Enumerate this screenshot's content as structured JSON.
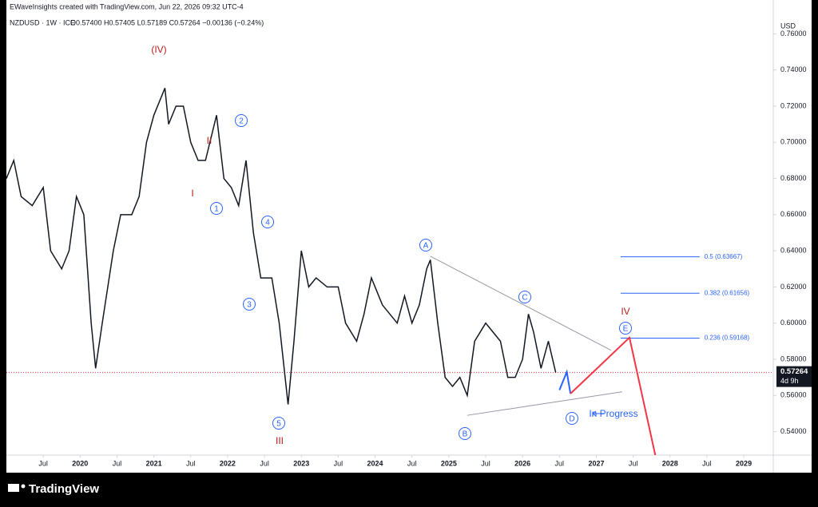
{
  "chart_data": {
    "type": "line",
    "header": "EWaveInsights created with TradingView.com, Jun 22, 2026 09:32 UTC-4",
    "symbol": "NZDUSD · 1W · ICE",
    "ohlc": "O0.57400 H0.57405 L0.57189 C0.57264 −0.00136 (−0.24%)",
    "y_unit": "USD",
    "brand": "TradingView",
    "xlim": [
      2019.0,
      2029.4
    ],
    "ylim": [
      0.527,
      0.769
    ],
    "xticks": [
      {
        "value": 2019.5,
        "label": "Jul"
      },
      2020,
      {
        "value": 2020.5,
        "label": "Jul"
      },
      2021,
      {
        "value": 2021.5,
        "label": "Jul"
      },
      2022,
      {
        "value": 2022.5,
        "label": "Jul"
      },
      2023,
      {
        "value": 2023.5,
        "label": "Jul"
      },
      2024,
      {
        "value": 2024.5,
        "label": "Jul"
      },
      2025,
      {
        "value": 2025.5,
        "label": "Jul"
      },
      2026,
      {
        "value": 2026.5,
        "label": "Jul"
      },
      2027,
      {
        "value": 2027.5,
        "label": "Jul"
      },
      2028,
      {
        "value": 2028.5,
        "label": "Jul"
      },
      2029
    ],
    "yticks": [
      {
        "value": 0.54,
        "label": "0.54000"
      },
      {
        "value": 0.56,
        "label": "0.56000"
      },
      {
        "value": 0.58,
        "label": "0.58000"
      },
      {
        "value": 0.6,
        "label": "0.60000"
      },
      {
        "value": 0.62,
        "label": "0.62000"
      },
      {
        "value": 0.64,
        "label": "0.64000"
      },
      {
        "value": 0.66,
        "label": "0.66000"
      },
      {
        "value": 0.68,
        "label": "0.68000"
      },
      {
        "value": 0.7,
        "label": "0.70000"
      },
      {
        "value": 0.72,
        "label": "0.72000"
      },
      {
        "value": 0.74,
        "label": "0.74000"
      },
      {
        "value": 0.76,
        "label": "0.76000"
      }
    ],
    "series": [
      {
        "color": "#131722",
        "x": [
          2019.0,
          2019.1,
          2019.2,
          2019.35,
          2019.5,
          2019.6,
          2019.75,
          2019.85,
          2019.95,
          2020.05,
          2020.15,
          2020.21,
          2020.3,
          2020.45,
          2020.55,
          2020.7,
          2020.8,
          2020.9,
          2021.0,
          2021.15,
          2021.2,
          2021.3,
          2021.4,
          2021.5,
          2021.6,
          2021.7,
          2021.85,
          2021.95,
          2022.05,
          2022.15,
          2022.25,
          2022.35,
          2022.45,
          2022.6,
          2022.7,
          2022.78,
          2022.82,
          2022.9,
          2023.0,
          2023.1,
          2023.2,
          2023.35,
          2023.5,
          2023.6,
          2023.75,
          2023.85,
          2023.95,
          2024.1,
          2024.3,
          2024.4,
          2024.5,
          2024.6,
          2024.7,
          2024.75,
          2024.85,
          2024.95,
          2025.05,
          2025.15,
          2025.25,
          2025.35,
          2025.5,
          2025.6,
          2025.7,
          2025.8,
          2025.9,
          2026.0,
          2026.08,
          2026.15,
          2026.25,
          2026.35,
          2026.45
        ],
        "values": [
          0.68,
          0.69,
          0.67,
          0.665,
          0.675,
          0.64,
          0.63,
          0.64,
          0.67,
          0.66,
          0.6,
          0.575,
          0.6,
          0.64,
          0.66,
          0.66,
          0.67,
          0.7,
          0.715,
          0.73,
          0.71,
          0.72,
          0.72,
          0.7,
          0.69,
          0.69,
          0.715,
          0.68,
          0.675,
          0.665,
          0.69,
          0.65,
          0.625,
          0.625,
          0.6,
          0.57,
          0.555,
          0.59,
          0.64,
          0.62,
          0.625,
          0.62,
          0.62,
          0.6,
          0.59,
          0.605,
          0.625,
          0.61,
          0.6,
          0.615,
          0.6,
          0.61,
          0.63,
          0.635,
          0.6,
          0.57,
          0.565,
          0.57,
          0.56,
          0.59,
          0.6,
          0.595,
          0.59,
          0.57,
          0.57,
          0.58,
          0.605,
          0.595,
          0.575,
          0.59,
          0.57264
        ]
      }
    ],
    "last_price": {
      "value": 0.57264,
      "label": "0.57264"
    },
    "countdown": "4d 9h",
    "levels": [
      {
        "value": 0.63667,
        "label": "0.5 (0.63667)"
      },
      {
        "value": 0.61656,
        "label": "0.382 (0.61656)"
      },
      {
        "value": 0.59168,
        "label": "0.236 (0.59168)"
      }
    ],
    "drawings": [
      {
        "color": "#9598a1",
        "x": [
          2024.75,
          2027.2
        ],
        "y": [
          0.637,
          0.585
        ]
      },
      {
        "color": "#9598a1",
        "x": [
          2025.25,
          2027.35
        ],
        "y": [
          0.549,
          0.562
        ]
      },
      {
        "color": "#2962ff",
        "x": [
          2026.5,
          2026.6,
          2026.65
        ],
        "y": [
          0.563,
          0.573,
          0.561
        ]
      },
      {
        "color": "#f23645",
        "x": [
          2026.65,
          2027.45,
          2027.8
        ],
        "y": [
          0.561,
          0.592,
          0.527
        ]
      }
    ],
    "annotations": [
      {
        "text": "(IV)",
        "color": "#b71c1c",
        "circled": false
      },
      {
        "text": "I",
        "color": "#b71c1c",
        "circled": false
      },
      {
        "text": "II",
        "color": "#b71c1c",
        "circled": false
      },
      {
        "text": "1",
        "color": "#2962ff",
        "circled": true
      },
      {
        "text": "2",
        "color": "#2962ff",
        "circled": true
      },
      {
        "text": "3",
        "color": "#2962ff",
        "circled": true
      },
      {
        "text": "4",
        "color": "#2962ff",
        "circled": true
      },
      {
        "text": "5",
        "color": "#2962ff",
        "circled": true
      },
      {
        "text": "III",
        "color": "#b71c1c",
        "circled": false
      },
      {
        "text": "A",
        "color": "#2962ff",
        "circled": true
      },
      {
        "text": "B",
        "color": "#2962ff",
        "circled": true
      },
      {
        "text": "C",
        "color": "#2962ff",
        "circled": true
      },
      {
        "text": "D",
        "color": "#2962ff",
        "circled": true
      },
      {
        "text": "E",
        "color": "#2962ff",
        "circled": true
      },
      {
        "text": "IV",
        "color": "#b71c1c",
        "circled": false
      },
      {
        "text": "In Progress",
        "color": "#2962ff",
        "circled": false
      }
    ]
  }
}
